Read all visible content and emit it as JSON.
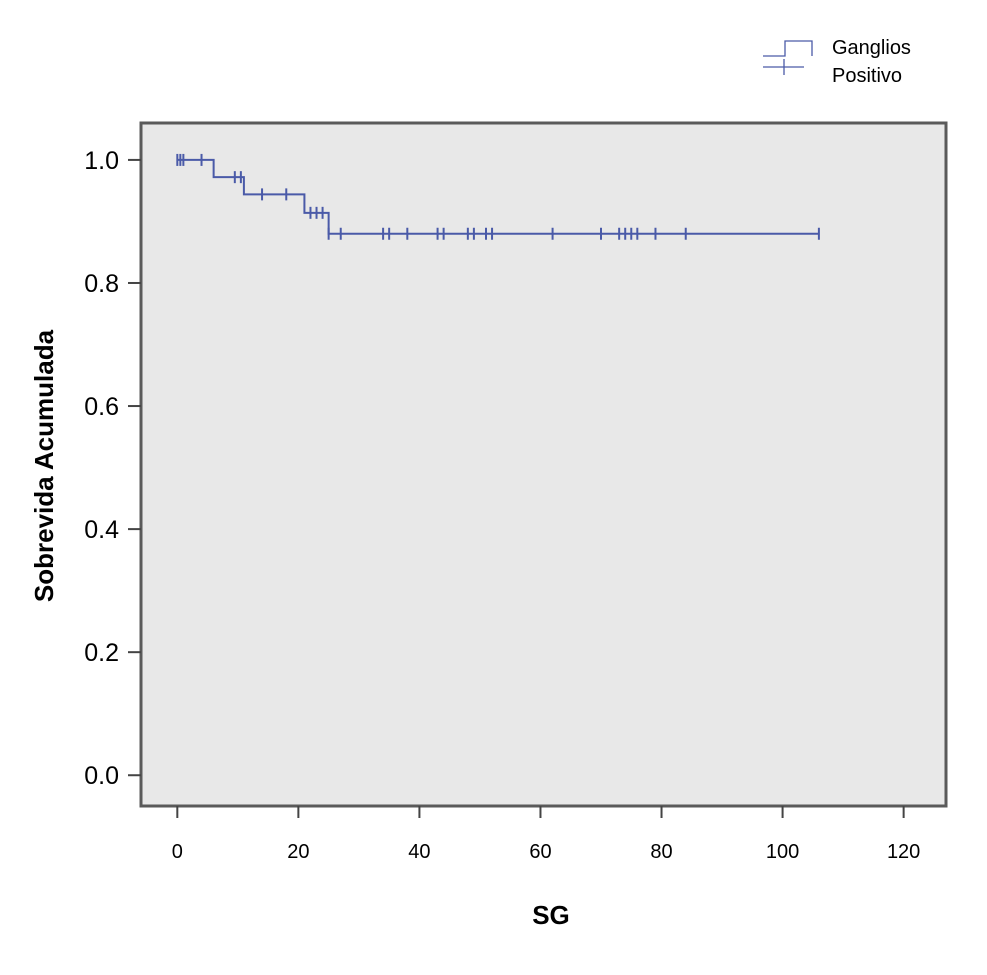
{
  "chart_data": {
    "type": "line",
    "subtype": "kaplan-meier-step",
    "xlabel": "SG",
    "ylabel": "Sobrevida Acumulada",
    "xlim": [
      -6,
      127
    ],
    "ylim": [
      -0.05,
      1.06
    ],
    "xticks": [
      0,
      20,
      40,
      60,
      80,
      100,
      120
    ],
    "yticks": [
      0.0,
      0.2,
      0.4,
      0.6,
      0.8,
      1.0
    ],
    "xtick_labels": [
      "0",
      "20",
      "40",
      "60",
      "80",
      "100",
      "120"
    ],
    "ytick_labels": [
      "0.0",
      "0.2",
      "0.4",
      "0.6",
      "0.8",
      "1.0"
    ],
    "grid": false,
    "legend": {
      "placement": "top-right",
      "title": "Ganglios",
      "entries": [
        {
          "label": "Positivo",
          "symbol": "censored-cross"
        }
      ]
    },
    "colors": {
      "line": "#4a5aa8",
      "plot_background": "#e8e8e8",
      "frame": "#5a5a5a"
    },
    "series": [
      {
        "name": "Positivo",
        "steps": [
          [
            0,
            1.0
          ],
          [
            6,
            0.972
          ],
          [
            11,
            0.944
          ],
          [
            21,
            0.914
          ],
          [
            25,
            0.88
          ],
          [
            106,
            0.88
          ]
        ],
        "censored": [
          [
            0,
            1.0
          ],
          [
            0.5,
            1.0
          ],
          [
            1,
            1.0
          ],
          [
            4,
            1.0
          ],
          [
            9.5,
            0.972
          ],
          [
            10.5,
            0.972
          ],
          [
            14,
            0.944
          ],
          [
            18,
            0.944
          ],
          [
            22,
            0.914
          ],
          [
            23,
            0.914
          ],
          [
            24,
            0.914
          ],
          [
            25,
            0.88
          ],
          [
            27,
            0.88
          ],
          [
            34,
            0.88
          ],
          [
            35,
            0.88
          ],
          [
            38,
            0.88
          ],
          [
            43,
            0.88
          ],
          [
            44,
            0.88
          ],
          [
            48,
            0.88
          ],
          [
            49,
            0.88
          ],
          [
            51,
            0.88
          ],
          [
            52,
            0.88
          ],
          [
            62,
            0.88
          ],
          [
            70,
            0.88
          ],
          [
            73,
            0.88
          ],
          [
            74,
            0.88
          ],
          [
            75,
            0.88
          ],
          [
            76,
            0.88
          ],
          [
            79,
            0.88
          ],
          [
            84,
            0.88
          ],
          [
            106,
            0.88
          ]
        ]
      }
    ]
  }
}
